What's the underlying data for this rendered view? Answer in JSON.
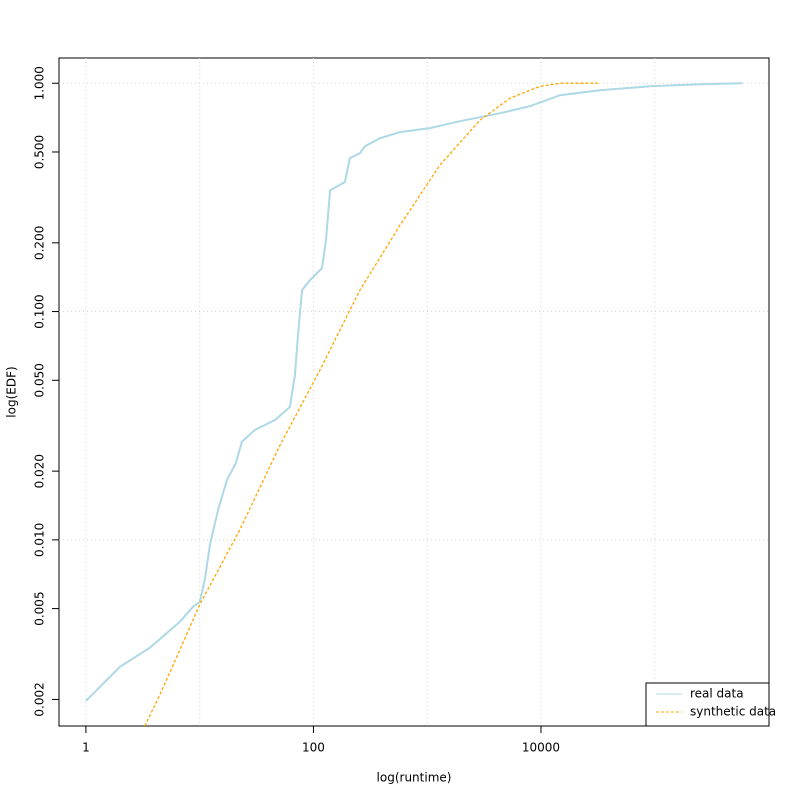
{
  "chart_data": {
    "type": "line",
    "xlabel": "log(runtime)",
    "ylabel": "log(EDF)",
    "xlog": true,
    "ylog": true,
    "xlim": [
      0.58,
      1010000
    ],
    "ylim": [
      0.00153,
      1.29
    ],
    "xticks": [
      1,
      100,
      10000
    ],
    "yticks": [
      {
        "value": 0.002,
        "label": "0.002"
      },
      {
        "value": 0.005,
        "label": "0.005"
      },
      {
        "value": 0.01,
        "label": "0.010"
      },
      {
        "value": 0.02,
        "label": "0.020"
      },
      {
        "value": 0.05,
        "label": "0.050"
      },
      {
        "value": 0.1,
        "label": "0.100"
      },
      {
        "value": 0.2,
        "label": "0.200"
      },
      {
        "value": 0.5,
        "label": "0.500"
      },
      {
        "value": 1,
        "label": "1.000"
      }
    ],
    "x_grid_lines": [
      1,
      10,
      100,
      1000,
      10000,
      100000
    ],
    "y_grid_lines": [
      0.01,
      0.1,
      1
    ],
    "grid": true,
    "legend": "bottomright",
    "series": [
      {
        "name": "real data",
        "color": "#add8e6",
        "linestyle": "solid",
        "x": [
          1,
          1.99,
          3.65,
          6.7,
          8.73,
          10,
          11.1,
          12.3,
          14.5,
          17.4,
          20.8,
          23.5,
          30.6,
          45.9,
          62.1,
          68.7,
          73.1,
          79.3,
          93.1,
          119,
          129,
          140,
          189,
          209,
          256,
          284,
          384,
          576,
          1057,
          1941,
          4365,
          8000,
          14700,
          33000,
          90800,
          250000,
          590000
        ],
        "values": [
          0.00197,
          0.00278,
          0.00337,
          0.00438,
          0.00509,
          0.00535,
          0.00668,
          0.0095,
          0.0135,
          0.0183,
          0.0217,
          0.0269,
          0.0303,
          0.0335,
          0.0382,
          0.0527,
          0.0789,
          0.124,
          0.137,
          0.155,
          0.206,
          0.34,
          0.369,
          0.47,
          0.494,
          0.53,
          0.574,
          0.611,
          0.636,
          0.682,
          0.739,
          0.793,
          0.886,
          0.932,
          0.97,
          0.99,
          1.0
        ]
      },
      {
        "name": "synthetic data",
        "color": "#ffa500",
        "linestyle": "dashed",
        "x": [
          3.3,
          4.47,
          6.7,
          10,
          22.6,
          50.8,
          114,
          256,
          576,
          1294,
          2910,
          5340,
          9800,
          14700,
          31700
        ],
        "values": [
          0.00153,
          0.0021,
          0.0033,
          0.0052,
          0.0111,
          0.026,
          0.0554,
          0.124,
          0.239,
          0.438,
          0.689,
          0.86,
          0.97,
          1.0,
          1.0
        ]
      }
    ]
  }
}
